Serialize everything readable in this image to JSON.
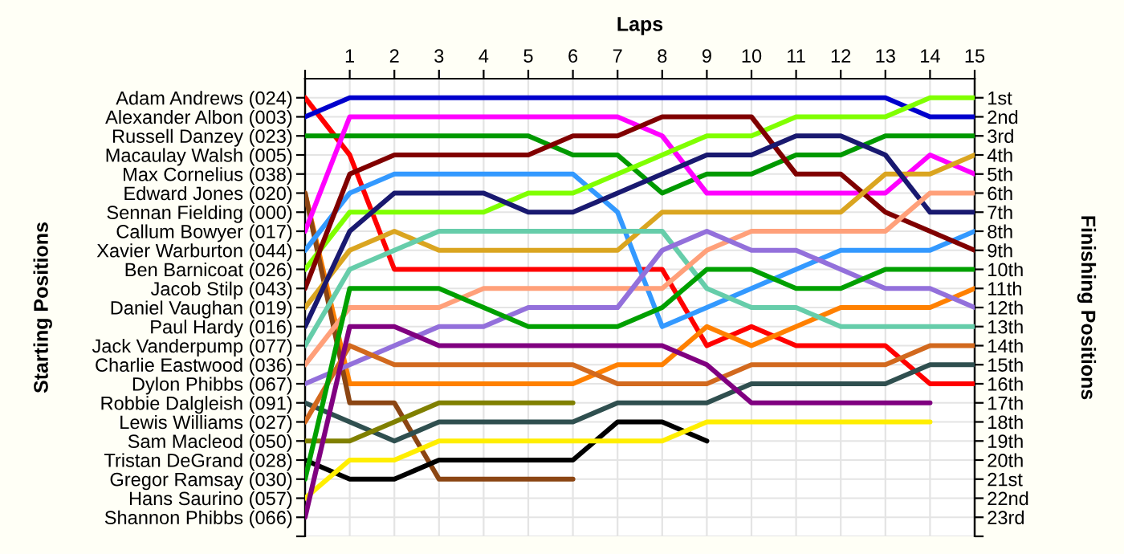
{
  "chart_data": {
    "type": "line",
    "xlabel": "Laps",
    "y2label": "Finishing Positions",
    "xlim": [
      0,
      15
    ],
    "xticks": [
      {
        "value": 0,
        "label": null
      },
      1,
      2,
      3,
      4,
      5,
      6,
      7,
      8,
      9,
      10,
      11,
      12,
      13,
      14,
      15
    ],
    "annotations": [
      "Adam Andrews (024)",
      "Alexander Albon (003)",
      "Russell Danzey (023)",
      "Macaulay Walsh (005)",
      "Max Cornelius (038)",
      "Edward Jones (020)",
      "Sennan Fielding (000)",
      "Callum Bowyer (017)",
      "Xavier Warburton (044)",
      "Ben Barnicoat (026)",
      "Jacob Stilp (043)",
      "Daniel Vaughan (019)",
      "Paul Hardy (016)",
      "Jack Vanderpump (077)",
      "Charlie Eastwood (036)",
      "Dylon Phibbs (067)",
      "Robbie Dalgleish (091)",
      "Lewis Williams (027)",
      "Sam Macleod (050)",
      "Tristan DeGrand (028)",
      "Gregor Ramsay (030)",
      "Hans Saurino (057)",
      "Shannon Phibbs (066)",
      "Starting Positions"
    ],
    "y2lim": [
      24,
      0
    ],
    "y2ticks": [
      {
        "value": 1,
        "label": "1st"
      },
      {
        "value": 2,
        "label": "2nd"
      },
      {
        "value": 3,
        "label": "3rd"
      },
      {
        "value": 4,
        "label": "4th"
      },
      {
        "value": 5,
        "label": "5th"
      },
      {
        "value": 6,
        "label": "6th"
      },
      {
        "value": 7,
        "label": "7th"
      },
      {
        "value": 8,
        "label": "8th"
      },
      {
        "value": 9,
        "label": "9th"
      },
      {
        "value": 10,
        "label": "10th"
      },
      {
        "value": 11,
        "label": "11th"
      },
      {
        "value": 12,
        "label": "12th"
      },
      {
        "value": 13,
        "label": "13th"
      },
      {
        "value": 14,
        "label": "14th"
      },
      {
        "value": 15,
        "label": "15th"
      },
      {
        "value": 16,
        "label": "16th"
      },
      {
        "value": 17,
        "label": "17th"
      },
      {
        "value": 18,
        "label": "18th"
      },
      {
        "value": 19,
        "label": "19th"
      },
      {
        "value": 20,
        "label": "20th"
      },
      {
        "value": 21,
        "label": "21st"
      },
      {
        "value": 22,
        "label": "22nd"
      },
      {
        "value": 23,
        "label": "23rd"
      },
      {
        "value": 24,
        "label": null
      }
    ],
    "x": [
      0,
      1,
      2,
      3,
      4,
      5,
      6,
      7,
      8,
      9,
      10,
      11,
      12,
      13,
      14,
      15
    ],
    "grid": true,
    "marker": "none",
    "line_style": "solid",
    "series": [
      {
        "axis": "y2",
        "color": "#ff0000",
        "values": [
          1,
          4,
          10,
          10,
          10,
          10,
          10,
          10,
          10,
          14,
          13,
          14,
          14,
          14,
          16,
          16
        ]
      },
      {
        "axis": "y2",
        "color": "#0000cc",
        "values": [
          2,
          1,
          1,
          1,
          1,
          1,
          1,
          1,
          1,
          1,
          1,
          1,
          1,
          1,
          2,
          2
        ]
      },
      {
        "axis": "y2",
        "color": "#009900",
        "values": [
          3,
          3,
          3,
          3,
          3,
          3,
          4,
          4,
          6,
          5,
          5,
          4,
          4,
          3,
          3,
          3
        ]
      },
      {
        "axis": "y2",
        "color": "#ff8000",
        "values": [
          6,
          16,
          16,
          16,
          16,
          16,
          16,
          15,
          15,
          13,
          14,
          13,
          12,
          12,
          12,
          11
        ]
      },
      {
        "axis": "y2",
        "color": "#8b4513",
        "values": [
          6,
          17,
          17,
          21,
          21,
          21,
          21,
          null,
          null,
          null,
          null,
          null,
          null,
          null,
          null,
          null
        ]
      },
      {
        "axis": "y2",
        "color": "#ff00ff",
        "values": [
          8,
          2,
          2,
          2,
          2,
          2,
          2,
          2,
          3,
          6,
          6,
          6,
          6,
          6,
          4,
          5
        ]
      },
      {
        "axis": "y2",
        "color": "#3399ff",
        "values": [
          9,
          6,
          5,
          5,
          5,
          5,
          5,
          7,
          13,
          12,
          11,
          10,
          9,
          9,
          9,
          8
        ]
      },
      {
        "axis": "y2",
        "color": "#80ff00",
        "values": [
          10,
          7,
          7,
          7,
          7,
          6,
          6,
          5,
          4,
          3,
          3,
          2,
          2,
          2,
          1,
          1
        ]
      },
      {
        "axis": "y2",
        "color": "#800000",
        "values": [
          11,
          5,
          4,
          4,
          4,
          4,
          3,
          3,
          2,
          2,
          2,
          5,
          5,
          7,
          8,
          9
        ]
      },
      {
        "axis": "y2",
        "color": "#daa520",
        "values": [
          12,
          9,
          8,
          9,
          9,
          9,
          9,
          9,
          7,
          7,
          7,
          7,
          7,
          5,
          5,
          4
        ]
      },
      {
        "axis": "y2",
        "color": "#191970",
        "values": [
          13,
          8,
          6,
          6,
          6,
          7,
          7,
          6,
          5,
          4,
          4,
          3,
          3,
          4,
          7,
          7
        ]
      },
      {
        "axis": "y2",
        "color": "#66cdaa",
        "values": [
          14,
          10,
          9,
          8,
          8,
          8,
          8,
          8,
          8,
          11,
          12,
          12,
          13,
          13,
          13,
          13
        ]
      },
      {
        "axis": "y2",
        "color": "#ffa07a",
        "values": [
          15,
          12,
          12,
          12,
          11,
          11,
          11,
          11,
          11,
          9,
          8,
          8,
          8,
          8,
          6,
          6
        ]
      },
      {
        "axis": "y2",
        "color": "#9370db",
        "values": [
          16,
          15,
          14,
          13,
          13,
          12,
          12,
          12,
          9,
          8,
          9,
          9,
          10,
          11,
          11,
          12
        ]
      },
      {
        "axis": "y2",
        "color": "#2f4f4f",
        "values": [
          17,
          18,
          19,
          18,
          18,
          18,
          18,
          17,
          17,
          17,
          16,
          16,
          16,
          16,
          15,
          15
        ]
      },
      {
        "axis": "y2",
        "color": "#d2691e",
        "values": [
          18,
          14,
          15,
          15,
          15,
          15,
          15,
          16,
          16,
          16,
          15,
          15,
          15,
          15,
          14,
          14
        ]
      },
      {
        "axis": "y2",
        "color": "#808000",
        "values": [
          19,
          19,
          18,
          17,
          17,
          17,
          17,
          null,
          null,
          null,
          null,
          null,
          null,
          null,
          null,
          null
        ]
      },
      {
        "axis": "y2",
        "color": "#000000",
        "values": [
          20,
          21,
          21,
          20,
          20,
          20,
          20,
          18,
          18,
          19,
          null,
          null,
          null,
          null,
          null,
          null
        ]
      },
      {
        "axis": "y2",
        "color": "#00a000",
        "values": [
          21,
          11,
          11,
          11,
          12,
          13,
          13,
          13,
          12,
          10,
          10,
          11,
          11,
          10,
          10,
          10
        ]
      },
      {
        "axis": "y2",
        "color": "#ffee00",
        "values": [
          22,
          20,
          20,
          19,
          19,
          19,
          19,
          19,
          19,
          18,
          18,
          18,
          18,
          18,
          18,
          null
        ]
      },
      {
        "axis": "y2",
        "color": "#800080",
        "values": [
          23,
          13,
          13,
          14,
          14,
          14,
          14,
          14,
          14,
          15,
          17,
          17,
          17,
          17,
          17,
          null
        ]
      }
    ]
  }
}
